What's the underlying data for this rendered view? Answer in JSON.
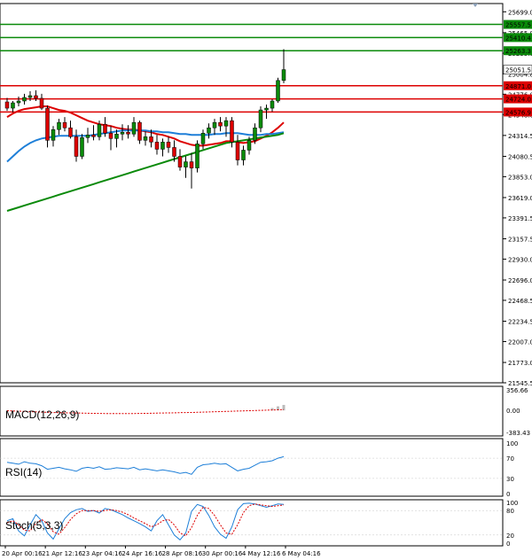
{
  "chart_data": [
    {
      "type": "candlestick",
      "panel": "price",
      "price_axis_ticks": [
        "25699.0",
        "25465.0",
        "25235.0",
        "25004.8",
        "24776.0",
        "24548.0",
        "24314.5",
        "24080.5",
        "23853.0",
        "23619.0",
        "23391.5",
        "23157.5",
        "22930.0",
        "22696.0",
        "22468.5",
        "22234.5",
        "22007.0",
        "21773.0",
        "21545.5"
      ],
      "ylim": [
        21545.5,
        25751.5
      ],
      "date_labels": [
        "20 Apr 00:16",
        "21 Apr 12:16",
        "23 Apr 04:16",
        "24 Apr 16:16",
        "28 Apr 08:16",
        "30 Apr 00:16",
        "4 May 12:16",
        "6 May 04:16"
      ],
      "candles": [
        {
          "o": 24690,
          "h": 24735,
          "l": 24590,
          "c": 24620
        },
        {
          "o": 24620,
          "h": 24700,
          "l": 24575,
          "c": 24680
        },
        {
          "o": 24680,
          "h": 24750,
          "l": 24640,
          "c": 24700
        },
        {
          "o": 24700,
          "h": 24780,
          "l": 24660,
          "c": 24740
        },
        {
          "o": 24740,
          "h": 24810,
          "l": 24700,
          "c": 24760
        },
        {
          "o": 24760,
          "h": 24820,
          "l": 24700,
          "c": 24730
        },
        {
          "o": 24730,
          "h": 24780,
          "l": 24600,
          "c": 24620
        },
        {
          "o": 24620,
          "h": 24650,
          "l": 24180,
          "c": 24260
        },
        {
          "o": 24260,
          "h": 24420,
          "l": 24190,
          "c": 24380
        },
        {
          "o": 24380,
          "h": 24500,
          "l": 24320,
          "c": 24460
        },
        {
          "o": 24460,
          "h": 24520,
          "l": 24360,
          "c": 24400
        },
        {
          "o": 24400,
          "h": 24480,
          "l": 24280,
          "c": 24300
        },
        {
          "o": 24300,
          "h": 24380,
          "l": 24020,
          "c": 24080
        },
        {
          "o": 24080,
          "h": 24330,
          "l": 24050,
          "c": 24290
        },
        {
          "o": 24290,
          "h": 24400,
          "l": 24230,
          "c": 24320
        },
        {
          "o": 24320,
          "h": 24430,
          "l": 24260,
          "c": 24300
        },
        {
          "o": 24300,
          "h": 24480,
          "l": 24260,
          "c": 24440
        },
        {
          "o": 24440,
          "h": 24520,
          "l": 24300,
          "c": 24340
        },
        {
          "o": 24340,
          "h": 24420,
          "l": 24150,
          "c": 24280
        },
        {
          "o": 24280,
          "h": 24380,
          "l": 24180,
          "c": 24330
        },
        {
          "o": 24330,
          "h": 24440,
          "l": 24260,
          "c": 24350
        },
        {
          "o": 24350,
          "h": 24430,
          "l": 24280,
          "c": 24330
        },
        {
          "o": 24330,
          "h": 24520,
          "l": 24300,
          "c": 24460
        },
        {
          "o": 24460,
          "h": 24480,
          "l": 24220,
          "c": 24260
        },
        {
          "o": 24260,
          "h": 24360,
          "l": 24200,
          "c": 24300
        },
        {
          "o": 24300,
          "h": 24380,
          "l": 24180,
          "c": 24240
        },
        {
          "o": 24240,
          "h": 24320,
          "l": 24100,
          "c": 24160
        },
        {
          "o": 24160,
          "h": 24280,
          "l": 24080,
          "c": 24240
        },
        {
          "o": 24240,
          "h": 24300,
          "l": 24120,
          "c": 24180
        },
        {
          "o": 24180,
          "h": 24260,
          "l": 24020,
          "c": 24080
        },
        {
          "o": 24080,
          "h": 24160,
          "l": 23920,
          "c": 23960
        },
        {
          "o": 23960,
          "h": 24080,
          "l": 23840,
          "c": 24020
        },
        {
          "o": 24020,
          "h": 24120,
          "l": 23720,
          "c": 23950
        },
        {
          "o": 23950,
          "h": 24260,
          "l": 23900,
          "c": 24220
        },
        {
          "o": 24220,
          "h": 24380,
          "l": 24160,
          "c": 24340
        },
        {
          "o": 24340,
          "h": 24450,
          "l": 24280,
          "c": 24400
        },
        {
          "o": 24400,
          "h": 24500,
          "l": 24320,
          "c": 24460
        },
        {
          "o": 24460,
          "h": 24520,
          "l": 24360,
          "c": 24420
        },
        {
          "o": 24420,
          "h": 24520,
          "l": 24300,
          "c": 24480
        },
        {
          "o": 24480,
          "h": 24520,
          "l": 24180,
          "c": 24240
        },
        {
          "o": 24240,
          "h": 24320,
          "l": 23980,
          "c": 24040
        },
        {
          "o": 24040,
          "h": 24200,
          "l": 23980,
          "c": 24150
        },
        {
          "o": 24150,
          "h": 24300,
          "l": 24100,
          "c": 24260
        },
        {
          "o": 24260,
          "h": 24450,
          "l": 24220,
          "c": 24400
        },
        {
          "o": 24400,
          "h": 24640,
          "l": 24350,
          "c": 24600
        },
        {
          "o": 24600,
          "h": 24660,
          "l": 24500,
          "c": 24620
        },
        {
          "o": 24620,
          "h": 24720,
          "l": 24580,
          "c": 24700
        },
        {
          "o": 24700,
          "h": 24960,
          "l": 24680,
          "c": 24930
        },
        {
          "o": 24930,
          "h": 25280,
          "l": 24900,
          "c": 25051.5
        }
      ],
      "moving_averages": [
        {
          "color": "#dd0000",
          "values": [
            24520,
            24560,
            24590,
            24610,
            24620,
            24630,
            24640,
            24640,
            24620,
            24600,
            24590,
            24570,
            24540,
            24510,
            24480,
            24460,
            24440,
            24430,
            24420,
            24400,
            24390,
            24380,
            24380,
            24370,
            24360,
            24350,
            24330,
            24320,
            24300,
            24280,
            24250,
            24230,
            24210,
            24200,
            24200,
            24210,
            24220,
            24230,
            24250,
            24250,
            24240,
            24230,
            24240,
            24250,
            24280,
            24310,
            24350,
            24400,
            24460
          ]
        },
        {
          "color": "#1e7fd8",
          "values": [
            24020,
            24080,
            24140,
            24190,
            24230,
            24260,
            24280,
            24290,
            24300,
            24310,
            24310,
            24310,
            24310,
            24310,
            24310,
            24320,
            24330,
            24340,
            24350,
            24360,
            24370,
            24370,
            24370,
            24370,
            24370,
            24360,
            24360,
            24350,
            24350,
            24340,
            24330,
            24330,
            24320,
            24320,
            24320,
            24320,
            24330,
            24330,
            24340,
            24340,
            24340,
            24330,
            24320,
            24320,
            24320,
            24330,
            24330,
            24340,
            24350
          ]
        },
        {
          "color": "#0a8a0a",
          "values": [
            23470,
            23490,
            23510,
            23530,
            23550,
            23570,
            23590,
            23610,
            23630,
            23650,
            23670,
            23690,
            23710,
            23730,
            23750,
            23770,
            23790,
            23810,
            23830,
            23850,
            23870,
            23890,
            23910,
            23930,
            23950,
            23970,
            23990,
            24010,
            24030,
            24050,
            24070,
            24090,
            24110,
            24130,
            24150,
            24170,
            24190,
            24210,
            24230,
            24240,
            24250,
            24260,
            24270,
            24280,
            24290,
            24300,
            24310,
            24320,
            24340
          ]
        }
      ],
      "horizontal_levels": [
        {
          "value": 25557.5,
          "label": "25557.5",
          "color": "#0a8a0a"
        },
        {
          "value": 25410.4,
          "label": "25410.4",
          "color": "#0a8a0a"
        },
        {
          "value": 25263.3,
          "label": "25263.3",
          "color": "#0a8a0a"
        },
        {
          "value": 24871.0,
          "label": "24871.0",
          "color": "#dd0000"
        },
        {
          "value": 24724.0,
          "label": "24724.0",
          "color": "#dd0000"
        },
        {
          "value": 24576.9,
          "label": "24576.9",
          "color": "#dd0000"
        }
      ],
      "current_price": "25051.5",
      "bull_color": "#0a8a0a",
      "bear_color": "#dd0000"
    },
    {
      "type": "histogram",
      "panel": "macd",
      "title": "MACD(12,26,9)",
      "axis_labels": [
        "356.66",
        "0.00",
        "-383.43"
      ],
      "ylim": [
        -383.43,
        356.66
      ],
      "signal": [
        -5,
        -10,
        -14,
        -18,
        -22,
        -26,
        -30,
        -34,
        -38,
        -40,
        -42,
        -44,
        -46,
        -48,
        -50,
        -52,
        -54,
        -55,
        -56,
        -56,
        -56,
        -56,
        -55,
        -54,
        -52,
        -50,
        -48,
        -46,
        -44,
        -42,
        -40,
        -38,
        -36,
        -33,
        -30,
        -27,
        -24,
        -21,
        -18,
        -15,
        -12,
        -9,
        -6,
        -3,
        0,
        3,
        6,
        10,
        14
      ],
      "histogram": [
        0,
        0,
        0,
        0,
        0,
        0,
        0,
        0,
        0,
        0,
        0,
        0,
        0,
        0,
        0,
        0,
        0,
        0,
        0,
        0,
        0,
        0,
        0,
        0,
        0,
        0,
        0,
        0,
        0,
        0,
        0,
        0,
        0,
        0,
        0,
        0,
        0,
        0,
        0,
        0,
        0,
        0,
        0,
        0,
        0,
        0,
        40,
        70,
        95
      ],
      "signal_color": "#dd0000"
    },
    {
      "type": "line",
      "panel": "rsi",
      "title": "RSI(14)",
      "axis_labels": [
        "100",
        "70",
        "30",
        "0"
      ],
      "ylim": [
        0,
        100
      ],
      "values": [
        62,
        60,
        58,
        63,
        60,
        59,
        55,
        48,
        50,
        52,
        49,
        47,
        44,
        50,
        52,
        50,
        53,
        48,
        49,
        51,
        50,
        49,
        52,
        47,
        49,
        47,
        45,
        47,
        45,
        43,
        40,
        42,
        38,
        52,
        57,
        58,
        60,
        58,
        59,
        52,
        45,
        48,
        50,
        56,
        62,
        63,
        65,
        70,
        73
      ],
      "color": "#1e7fd8"
    },
    {
      "type": "line",
      "panel": "stochastic",
      "title": "Stoch(5,3,3)",
      "axis_labels": [
        "100",
        "80",
        "20",
        "0"
      ],
      "ylim": [
        0,
        100
      ],
      "main": [
        55,
        60,
        30,
        18,
        45,
        70,
        55,
        25,
        10,
        35,
        60,
        75,
        82,
        85,
        78,
        80,
        74,
        85,
        82,
        76,
        70,
        62,
        55,
        48,
        40,
        30,
        55,
        70,
        45,
        20,
        8,
        25,
        78,
        95,
        90,
        68,
        40,
        22,
        12,
        40,
        82,
        97,
        98,
        96,
        92,
        88,
        92,
        96,
        95
      ],
      "signal": [
        50,
        55,
        45,
        32,
        30,
        48,
        58,
        48,
        28,
        22,
        38,
        58,
        72,
        80,
        80,
        80,
        78,
        80,
        82,
        80,
        76,
        70,
        62,
        55,
        48,
        40,
        45,
        55,
        58,
        45,
        25,
        18,
        38,
        68,
        88,
        85,
        68,
        45,
        25,
        22,
        45,
        75,
        92,
        96,
        94,
        92,
        90,
        92,
        94
      ],
      "main_color": "#1e7fd8",
      "signal_color": "#dd0000"
    }
  ]
}
